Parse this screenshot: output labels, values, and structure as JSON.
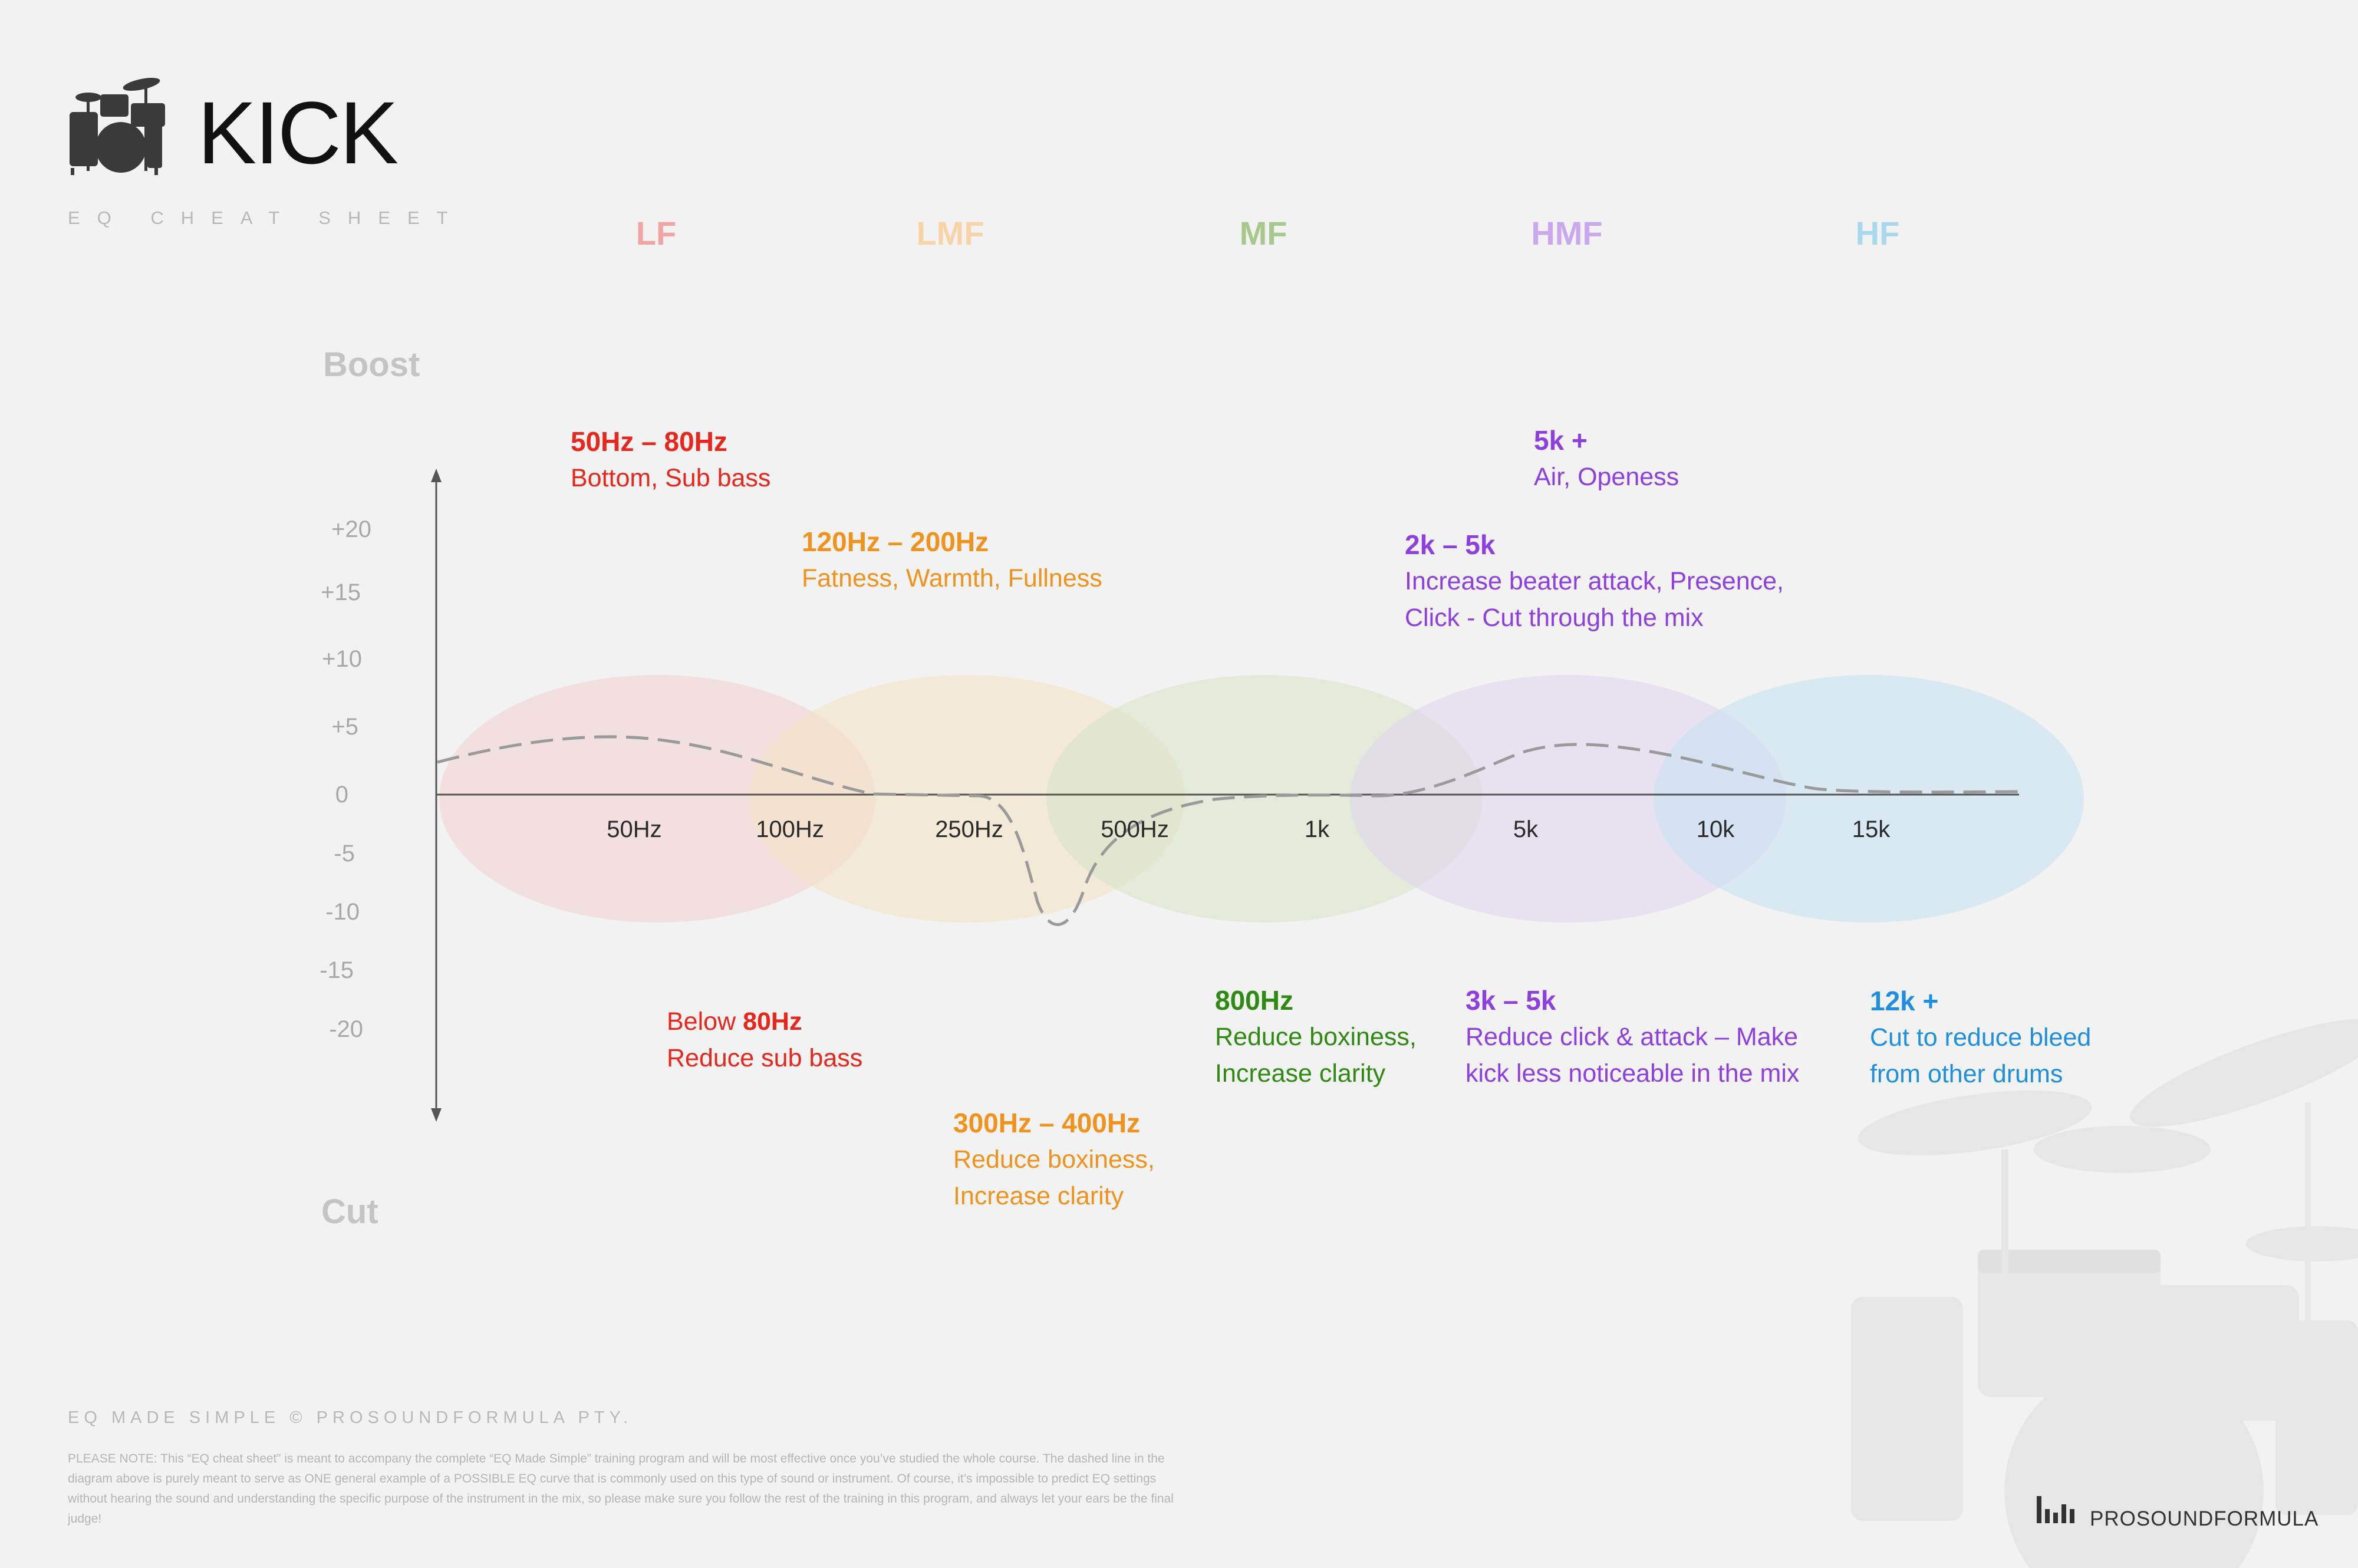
{
  "header": {
    "title": "KICK",
    "subtitle": "EQ CHEAT SHEET",
    "icon": "drum-kit-icon"
  },
  "bands": [
    {
      "label": "LF",
      "color": "#f4a3a3"
    },
    {
      "label": "LMF",
      "color": "#f8d3a6"
    },
    {
      "label": "MF",
      "color": "#a9c88e"
    },
    {
      "label": "HMF",
      "color": "#c9a8ef"
    },
    {
      "label": "HF",
      "color": "#a7d8ec"
    }
  ],
  "axis": {
    "boost_label": "Boost",
    "cut_label": "Cut",
    "y_ticks": [
      "+20",
      "+15",
      "+10",
      "+5",
      "0",
      "-5",
      "-10",
      "-15",
      "-20"
    ],
    "x_ticks": [
      "50Hz",
      "100Hz",
      "250Hz",
      "500Hz",
      "1k",
      "5k",
      "10k",
      "15k"
    ]
  },
  "zones": [
    {
      "name": "LF",
      "fill": "#f2d4d6"
    },
    {
      "name": "LMF",
      "fill": "#f3e2c5"
    },
    {
      "name": "MF",
      "fill": "#d9e4ca"
    },
    {
      "name": "HMF",
      "fill": "#e1d5ef"
    },
    {
      "name": "HF",
      "fill": "#c8e2f1"
    }
  ],
  "notes": {
    "n1": {
      "heading": "50Hz – 80Hz",
      "line1": "Bottom, Sub bass",
      "color": "#e8261b"
    },
    "n2": {
      "heading": "120Hz – 200Hz",
      "line1": "Fatness, Warmth, Fullness",
      "color": "#f0921c"
    },
    "n3": {
      "heading": "5k +",
      "line1": "Air, Openess",
      "color": "#8e3fe0"
    },
    "n4": {
      "heading": "2k – 5k",
      "line1": "Increase beater attack, Presence,",
      "line2": "Click - Cut through the mix",
      "color": "#8e3fe0"
    },
    "n5": {
      "prefix": "Below ",
      "heading": "80Hz",
      "line1": "Reduce sub bass",
      "color": "#e8261b"
    },
    "n6": {
      "heading": "300Hz – 400Hz",
      "line1": "Reduce boxiness,",
      "line2": "Increase clarity",
      "color": "#f0921c"
    },
    "n7": {
      "heading": "800Hz",
      "line1": "Reduce boxiness,",
      "line2": "Increase clarity",
      "color": "#2e8b12"
    },
    "n8": {
      "heading": "3k – 5k",
      "line1": "Reduce click & attack – Make",
      "line2": "kick less noticeable in the mix",
      "color": "#8e3fe0"
    },
    "n9": {
      "heading": "12k +",
      "line1": "Cut to reduce bleed",
      "line2": "from other drums",
      "color": "#1e8fe0"
    }
  },
  "footer": {
    "copyright": "EQ MADE SIMPLE  © PROSOUNDFORMULA PTY.",
    "disclaimer": "PLEASE NOTE: This “EQ cheat sheet” is meant to accompany the complete “EQ Made Simple” training program and will be most effective once you’ve studied the whole course. The dashed line in the diagram above is purely meant to serve as ONE general example of a POSSIBLE EQ curve that is commonly used on this type of sound or instrument. Of course, it’s impossible to predict EQ settings without hearing the sound and understanding the specific purpose of the instrument in the mix, so please make sure you follow the rest of the training in this program, and always let your ears be the final judge!",
    "brand": "PROSOUNDFORMULA",
    "brand_icon": "bar-chart-logo-icon"
  }
}
